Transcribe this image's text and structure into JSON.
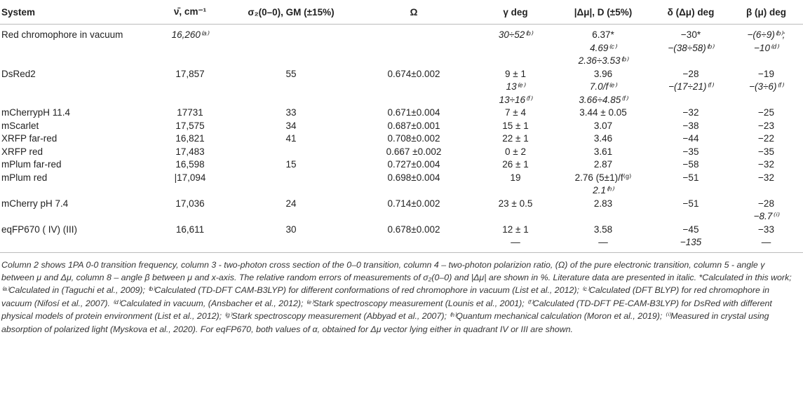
{
  "headers": [
    "System",
    "ν̄, cm⁻¹",
    "σ₂(0–0), GM (±15%)",
    "Ω",
    "γ deg",
    "|Δμ|, D (±5%)",
    "δ (Δμ) deg",
    "β (μ) deg"
  ],
  "rows": [
    {
      "system": "Red chromophore in vacuum",
      "nu": "16,260⁽ᵃ⁾",
      "sigma": "",
      "omega": "",
      "gamma": [
        "30÷52⁽ᵇ⁾"
      ],
      "dmu": [
        "6.37*",
        "4.69⁽ᶜ⁾",
        "2.36÷3.53⁽ᵇ⁾"
      ],
      "delta": [
        "−30*",
        "−(38÷58)⁽ᵇ⁾"
      ],
      "beta": [
        "−(6÷9)⁽ᵇ⁾;",
        "−10⁽ᵈ⁾"
      ]
    },
    {
      "system": "DsRed2",
      "nu": "17,857",
      "sigma": "55",
      "omega": "0.674±0.002",
      "gamma": [
        "9 ± 1",
        "13⁽ᵉ⁾",
        "13÷16⁽ᶠ⁾"
      ],
      "dmu": [
        "3.96",
        "7.0/f⁽ᵉ⁾",
        "3.66÷4.85⁽ᶠ⁾"
      ],
      "delta": [
        "−28",
        "−(17÷21)⁽ᶠ⁾"
      ],
      "beta": [
        "−19",
        "−(3÷6)⁽ᶠ⁾"
      ]
    },
    {
      "system": "mCherrypH 11.4",
      "nu": "17731",
      "sigma": "33",
      "omega": "0.671±0.004",
      "gamma": [
        "7 ± 4"
      ],
      "dmu": [
        "3.44 ± 0.05"
      ],
      "delta": [
        "−32"
      ],
      "beta": [
        "−25"
      ]
    },
    {
      "system": "mScarlet",
      "nu": "17,575",
      "sigma": "34",
      "omega": "0.687±0.001",
      "gamma": [
        "15 ± 1"
      ],
      "dmu": [
        "3.07"
      ],
      "delta": [
        "−38"
      ],
      "beta": [
        "−23"
      ]
    },
    {
      "system": "XRFP far-red",
      "nu": "16,821",
      "sigma": "41",
      "omega": "0.708±0.002",
      "gamma": [
        "22 ± 1"
      ],
      "dmu": [
        "3.46"
      ],
      "delta": [
        "−44"
      ],
      "beta": [
        "−22"
      ]
    },
    {
      "system": "XRFP red",
      "nu": "17,483",
      "sigma": "",
      "omega": "0.667 ±0.002",
      "gamma": [
        "0 ± 2"
      ],
      "dmu": [
        "3.61"
      ],
      "delta": [
        "−35"
      ],
      "beta": [
        "−35"
      ]
    },
    {
      "system": "mPlum far-red",
      "nu": "16,598",
      "sigma": "15",
      "omega": "0.727±0.004",
      "gamma": [
        "26 ± 1"
      ],
      "dmu": [
        "2.87"
      ],
      "delta": [
        "−58"
      ],
      "beta": [
        "−32"
      ]
    },
    {
      "system": "mPlum red",
      "nu": "|17,094",
      "sigma": "",
      "omega": "0.698±0.004",
      "gamma": [
        "19"
      ],
      "dmu": [
        "2.76 (5±1)/f⁽ᵍ⁾",
        "2.1⁽ʰ⁾"
      ],
      "delta": [
        "−51"
      ],
      "beta": [
        "−32"
      ]
    },
    {
      "system": "mCherry pH 7.4",
      "nu": "17,036",
      "sigma": "24",
      "omega": "0.714±0.002",
      "gamma": [
        "23 ± 0.5"
      ],
      "dmu": [
        "2.83"
      ],
      "delta": [
        "−51"
      ],
      "beta": [
        "−28",
        "−8.7⁽ⁱ⁾"
      ]
    },
    {
      "system": "eqFP670 ( IV) (III)",
      "nu": "16,611",
      "sigma": "30",
      "omega": "0.678±0.002",
      "gamma": [
        "12 ± 1",
        "—"
      ],
      "dmu": [
        "3.58",
        "—"
      ],
      "delta": [
        "−45",
        "−135"
      ],
      "beta": [
        "−33",
        "—"
      ]
    }
  ],
  "footnote": "Column 2 shows 1PA 0-0 transition frequency, column 3 - two-photon cross section of the 0–0 transition, column 4 – two-photon polarizion ratio, (Ω) of the pure electronic transition, column 5 - angle γ between μ and Δμ, column 8 – angle β between μ and x-axis. The relative random errors of measurements of σ₂(0–0) and |Δμ| are shown in %. Literature data are presented in italic. *Calculated in this work; ⁽ᵃ⁾Calculated in (Taguchi et al., 2009); ⁽ᵇ⁾Calculated (TD-DFT CAM-B3LYP) for different conformations of red chromophore in vacuum (List et al., 2012); ⁽ᶜ⁾Calculated (DFT BLYP) for red chromophore in vacuum (Nifosí et al., 2007). ⁽ᵈ⁾Calculated in vacuum, (Ansbacher et al., 2012); ⁽ᵉ⁾Stark spectroscopy measurement (Lounis et al., 2001); ⁽ᶠ⁾Calculated (TD-DFT PE-CAM-B3LYP) for DsRed with different physical models of protein environment (List et al., 2012); ⁽ᵍ⁾Stark spectroscopy measurement (Abbyad et al., 2007); ⁽ʰ⁾Quantum mechanical calculation (Moron et al., 2019); ⁽ⁱ⁾Measured in crystal using absorption of polarized light (Myskova et al., 2020). For eqFP670, both values of α, obtained for Δμ vector lying either in quadrant IV or III are shown."
}
